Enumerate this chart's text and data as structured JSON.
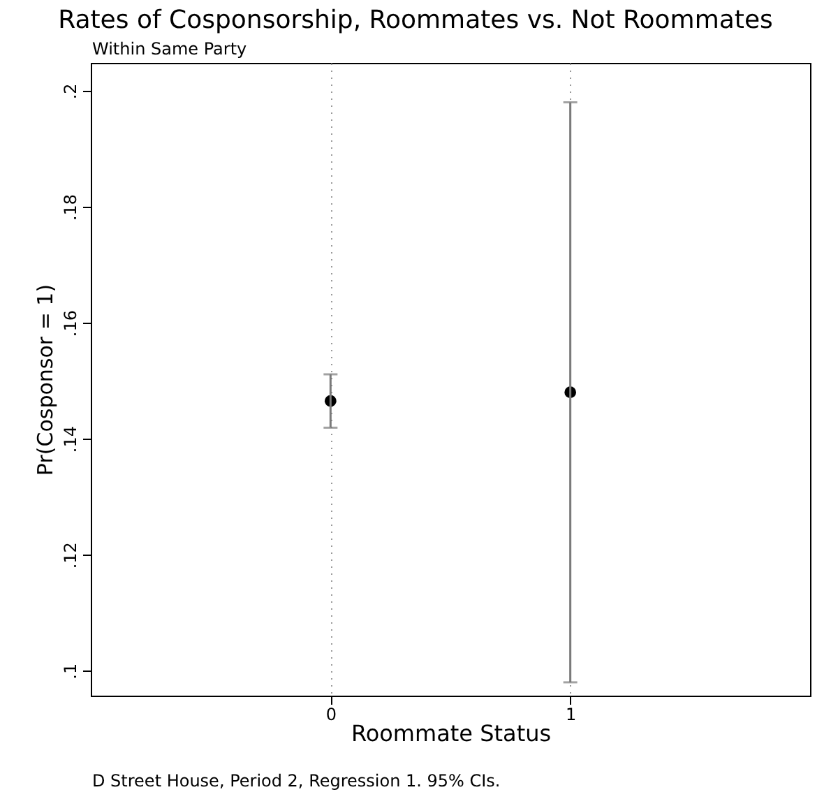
{
  "chart_data": {
    "type": "scatter",
    "title": "Rates of Cosponsorship, Roommates vs. Not Roommates",
    "subtitle": "Within Same Party",
    "xlabel": "Roommate Status",
    "ylabel": "Pr(Cosponsor = 1)",
    "x": [
      0,
      1
    ],
    "series": [
      {
        "color": "#000000",
        "values": [
          0.1465,
          0.148
        ],
        "errors": [
          [
            0.1419,
            0.1511
          ],
          [
            0.098,
            0.198
          ]
        ]
      }
    ],
    "xlim": [
      -1,
      2
    ],
    "xticks": [
      0,
      1
    ],
    "ylim": [
      0.0957,
      0.2048
    ],
    "yticks": [
      {
        "value": 0.1,
        "label": ".1"
      },
      {
        "value": 0.12,
        "label": ".12"
      },
      {
        "value": 0.14,
        "label": ".14"
      },
      {
        "value": 0.16,
        "label": ".16"
      },
      {
        "value": 0.18,
        "label": ".18"
      },
      {
        "value": 0.2,
        "label": ".2"
      }
    ],
    "grid": "x",
    "marker": "circle",
    "annotations": [
      "D Street House, Period 2, Regression 1. 95% CIs."
    ]
  }
}
